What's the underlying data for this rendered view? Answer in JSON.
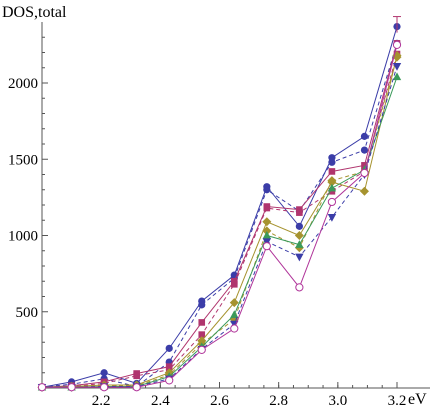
{
  "chart_data": {
    "type": "line",
    "title": "",
    "xlabel": "eV",
    "ylabel": "DOS,total",
    "xlim": [
      2.0,
      3.2
    ],
    "ylim": [
      0,
      2400
    ],
    "x_ticks": [
      2.2,
      2.4,
      2.6,
      2.8,
      3.0,
      3.2
    ],
    "x_tick_labels": [
      "2.2",
      "2.4",
      "2.6",
      "2.8",
      "3.0",
      "3.2"
    ],
    "y_ticks": [
      500,
      1000,
      1500,
      2000
    ],
    "y_tick_labels": [
      "500",
      "1000",
      "1500",
      "2000"
    ],
    "grid": false,
    "legend": "none",
    "x": [
      2.0,
      2.1,
      2.21,
      2.32,
      2.43,
      2.54,
      2.65,
      2.76,
      2.87,
      2.98,
      3.09,
      3.2
    ],
    "series": [
      {
        "marker": "circle",
        "dashed": false,
        "color": "#3b3da8",
        "values": [
          5,
          40,
          100,
          30,
          260,
          570,
          740,
          1320,
          1060,
          1510,
          1650,
          2370
        ]
      },
      {
        "marker": "circle",
        "dashed": true,
        "color": "#3b3da8",
        "values": [
          5,
          25,
          60,
          10,
          170,
          545,
          720,
          1300,
          1160,
          1480,
          1560,
          2260
        ]
      },
      {
        "marker": "square",
        "dashed": false,
        "color": "#b0356e",
        "values": [
          5,
          15,
          40,
          95,
          140,
          430,
          700,
          1190,
          1170,
          1420,
          1460,
          2260
        ]
      },
      {
        "marker": "square",
        "dashed": true,
        "color": "#b0356e",
        "values": [
          5,
          10,
          30,
          80,
          120,
          350,
          680,
          1180,
          1150,
          1290,
          1420,
          2190
        ]
      },
      {
        "marker": "diamond",
        "dashed": false,
        "color": "#a6932f",
        "values": [
          5,
          10,
          20,
          20,
          100,
          310,
          560,
          1090,
          1000,
          1350,
          1290,
          2180
        ]
      },
      {
        "marker": "diamond",
        "dashed": true,
        "color": "#a6932f",
        "values": [
          5,
          5,
          15,
          15,
          85,
          290,
          450,
          1030,
          920,
          1360,
          1420,
          2170
        ]
      },
      {
        "marker": "triangle-up",
        "dashed": false,
        "color": "#3b9a5a",
        "values": [
          5,
          5,
          10,
          10,
          75,
          270,
          480,
          1000,
          940,
          1310,
          1430,
          2040
        ]
      },
      {
        "marker": "triangle-down",
        "dashed": true,
        "color": "#3b3da8",
        "values": [
          5,
          5,
          10,
          10,
          60,
          255,
          420,
          960,
          860,
          1120,
          1400,
          2110
        ]
      },
      {
        "marker": "circle-open",
        "dashed": false,
        "color": "#b0359a",
        "values": [
          5,
          5,
          5,
          5,
          50,
          250,
          390,
          930,
          660,
          1220,
          1410,
          2250
        ]
      }
    ]
  }
}
